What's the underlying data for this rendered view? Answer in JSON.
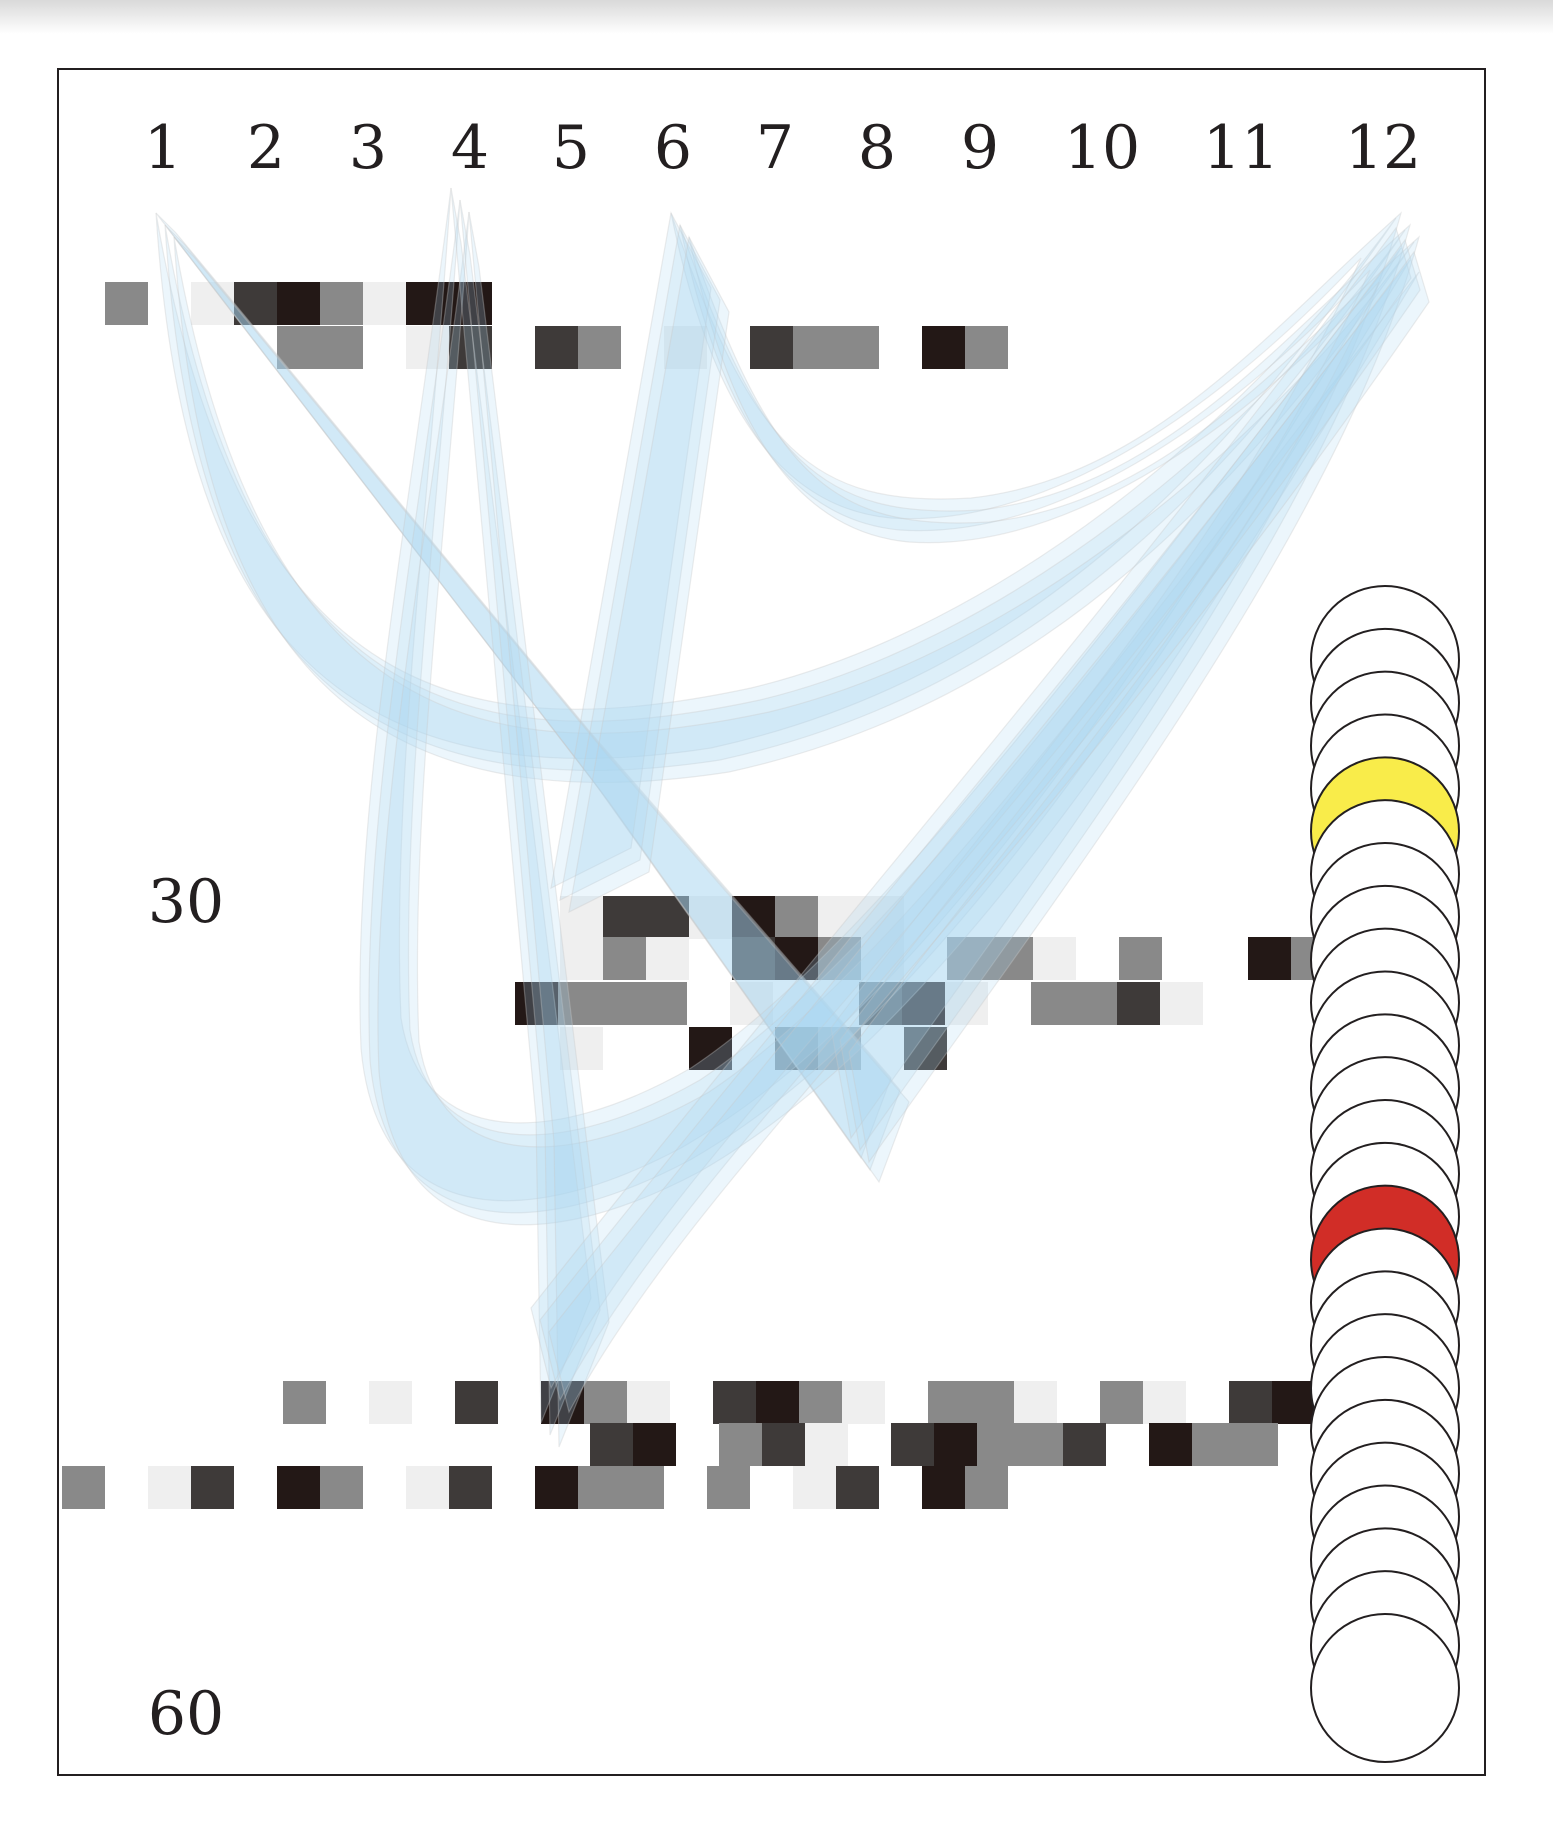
{
  "figure": {
    "column_numbers": [
      "1",
      "2",
      "3",
      "4",
      "5",
      "6",
      "7",
      "8",
      "9",
      "10",
      "11",
      "12"
    ],
    "row_labels": [
      "30",
      "60"
    ]
  },
  "colors": {
    "frame": "#231f20",
    "swath": "#a9d4f2",
    "swath_edge": "#c8c8c8",
    "tile_black": "#231816",
    "tile_dark": "#3e3a39",
    "tile_gray": "#898989",
    "tile_light": "#efefef",
    "circle_fill": "#ffffff",
    "circle_yellow": "#f9ec4a",
    "circle_red": "#d12d27"
  },
  "tile_shade_key": {
    "k": "black",
    "d": "dark",
    "g": "gray",
    "l": "light",
    ".": "empty"
  },
  "tile_rows": [
    "g.ldkglkk.",
    "....gg.ld.dg.l.dgg.kg",
    "lddlkgll.",
    "lgl.dkgl.ggl.g..kggk",
    "kggg.l..dkl.ggdl",
    "l..k.dg.d",
    "g.l.d.kgl.dkgl.ggl.gl.dkg"
  ],
  "circle_stack": {
    "count": 25,
    "highlights": [
      {
        "index": 4,
        "color": "yellow"
      },
      {
        "index": 14,
        "color": "red"
      }
    ]
  }
}
